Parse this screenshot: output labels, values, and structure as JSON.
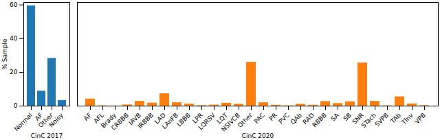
{
  "chart_data": [
    {
      "type": "bar",
      "x_label": "CinC 2017",
      "y_label": "% Sample",
      "categories": [
        "Normal",
        "AF",
        "Other",
        "Noisy"
      ],
      "values": [
        59.5,
        8.9,
        28.3,
        3.3
      ],
      "color": "#1f77b4",
      "ylim": [
        0,
        61.5
      ],
      "yticks": [
        0,
        20,
        40,
        60
      ],
      "grid": false
    },
    {
      "type": "bar",
      "x_label": "CinC 2020",
      "categories": [
        "AF",
        "AFL",
        "Brady",
        "CRBBB",
        "IAVB",
        "IRBBB",
        "LAD",
        "LAnFB",
        "LBBB",
        "LPR",
        "LQRSV",
        "LQT",
        "NSIVCB",
        "Other",
        "PAC",
        "PR",
        "PVC",
        "QAb",
        "RAD",
        "RBBB",
        "SA",
        "SB",
        "SNR",
        "STach",
        "SVPB",
        "TAb",
        "TInv",
        "VPB"
      ],
      "values": [
        4.2,
        0.2,
        0.1,
        0.7,
        2.8,
        1.8,
        7.3,
        2.0,
        1.2,
        0.3,
        0.6,
        1.7,
        1.1,
        26.0,
        2.0,
        0.5,
        0.2,
        1.1,
        0.5,
        2.7,
        1.5,
        2.6,
        25.6,
        2.8,
        0.2,
        5.5,
        1.3,
        0.3
      ],
      "color": "#ff7f0e",
      "ylim": [
        0,
        61.5
      ],
      "tick_labels": "x",
      "grid": false
    }
  ]
}
